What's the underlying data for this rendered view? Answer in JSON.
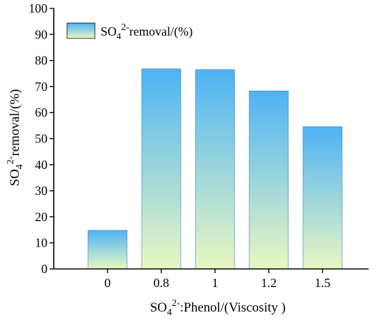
{
  "chart_data": {
    "type": "bar",
    "categories": [
      "0",
      "0.8",
      "1",
      "1.2",
      "1.5"
    ],
    "series": [
      {
        "name": "SO4 2- removal/(%)",
        "values": [
          14.8,
          76.8,
          76.5,
          68.3,
          54.6
        ]
      }
    ],
    "xlabel": {
      "main": "SO",
      "sub": "4",
      "sup": "2-",
      "rest": ":Phenol/(Viscosity )"
    },
    "ylabel": {
      "main": "SO",
      "sub": "4",
      "sup": "2-",
      "rest": "removal/(%)"
    },
    "legend": {
      "main": "SO",
      "sub": "4",
      "sup": "2-",
      "rest": "removal/(%)",
      "position": "top-left"
    },
    "ylim": [
      0,
      100
    ],
    "yticks": [
      "0",
      "10",
      "20",
      "30",
      "40",
      "50",
      "60",
      "70",
      "80",
      "90",
      "100"
    ],
    "grid": false,
    "colors": {
      "bar_top": "#4db3f5",
      "bar_bottom": "#e9f7c2",
      "axis": "#000000"
    }
  }
}
